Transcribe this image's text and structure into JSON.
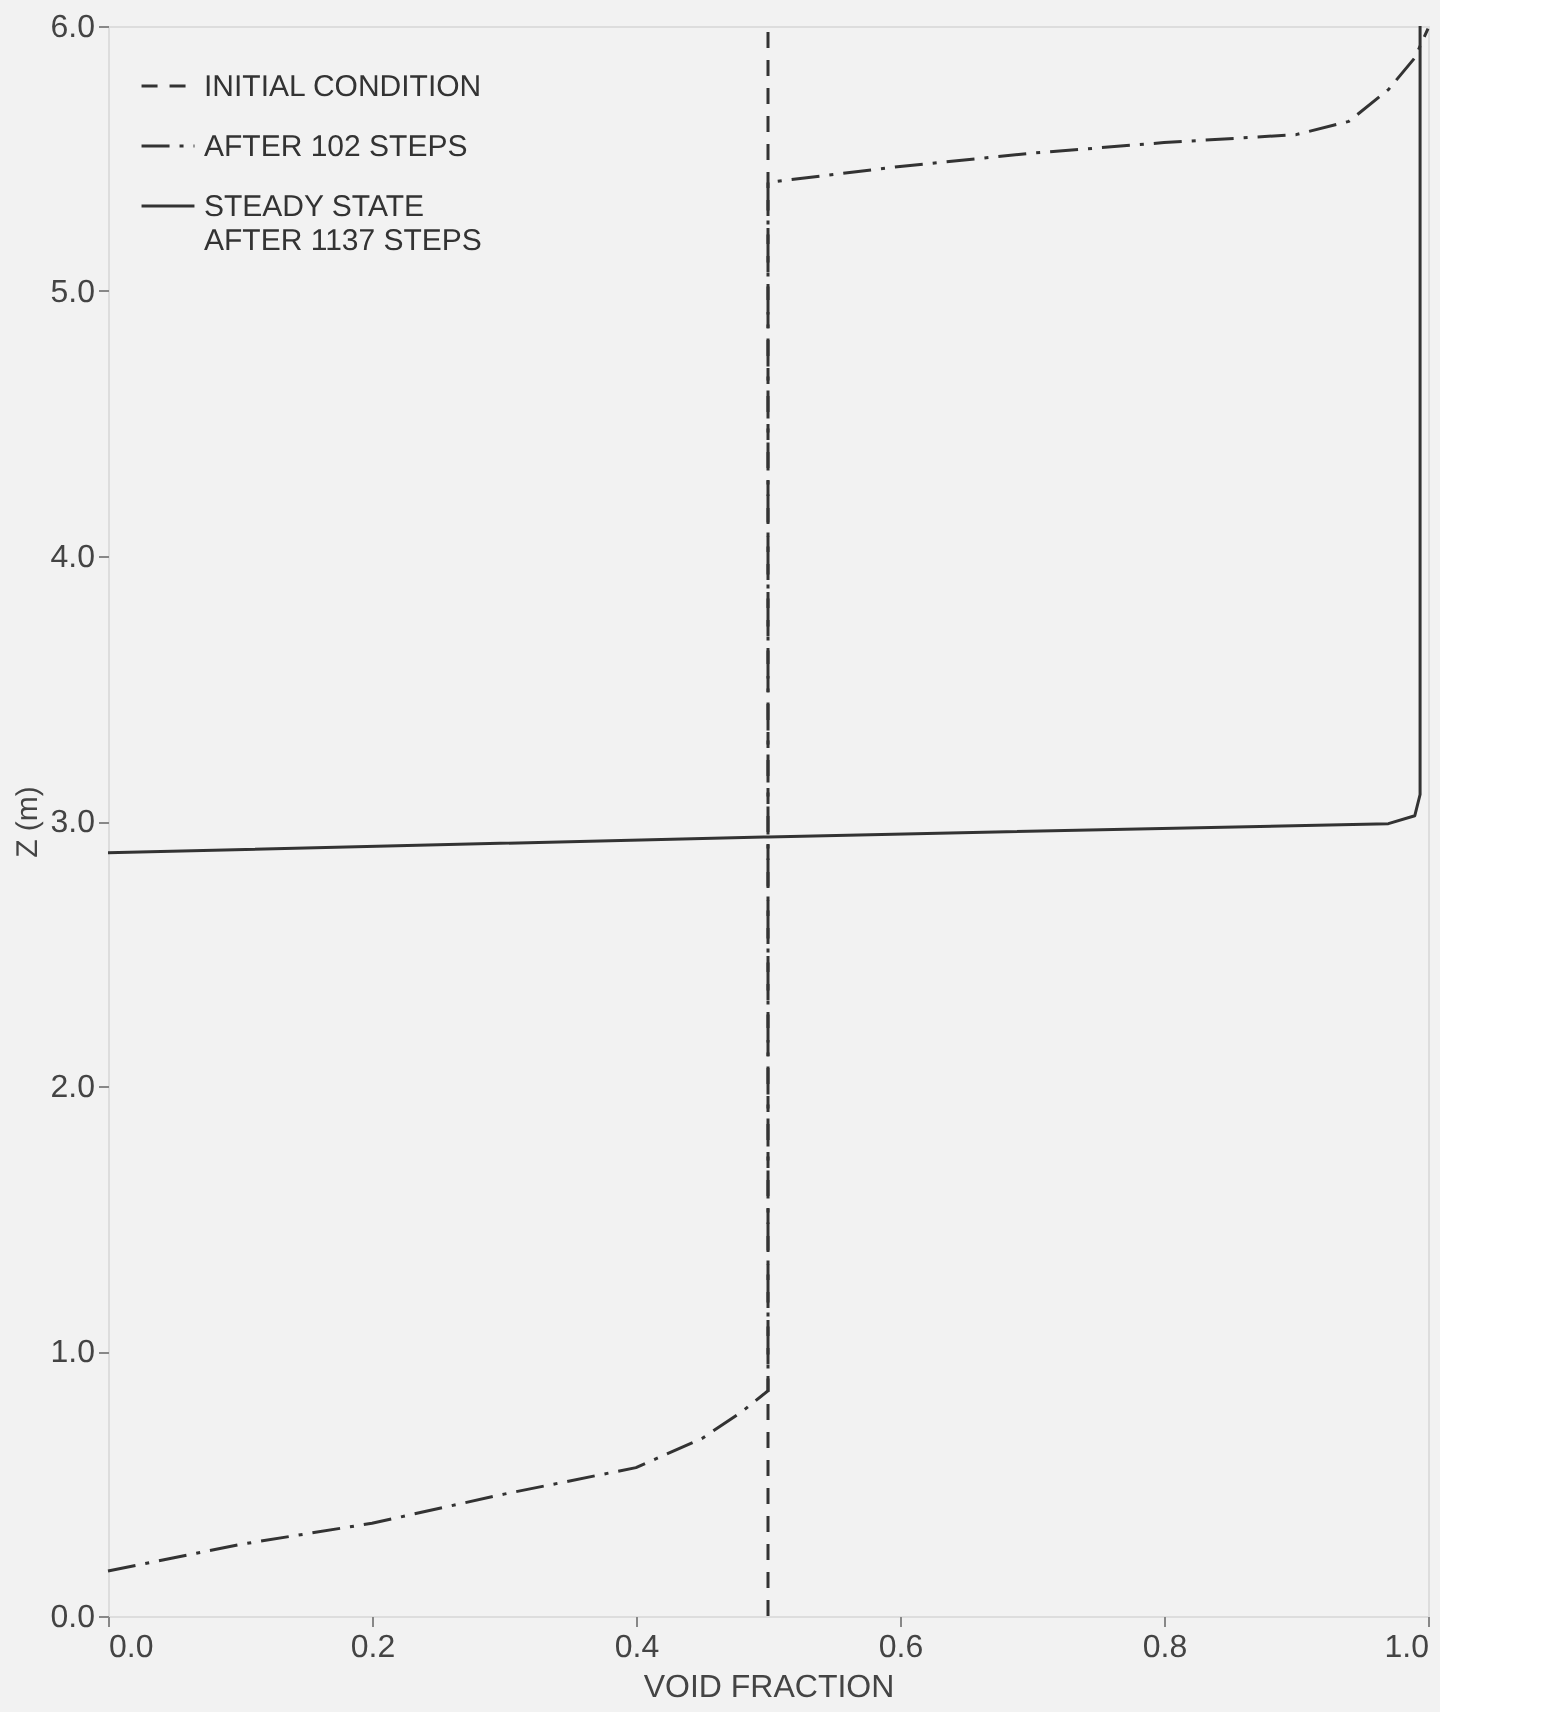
{
  "chart_data": {
    "type": "line",
    "xlabel": "VOID FRACTION",
    "ylabel": "Z (m)",
    "xlim": [
      0,
      1
    ],
    "ylim": [
      0,
      6
    ],
    "xticks": [
      {
        "value": 0,
        "label": "0.0"
      },
      {
        "value": 0.2,
        "label": "0.2"
      },
      {
        "value": 0.4,
        "label": "0.4"
      },
      {
        "value": 0.6,
        "label": "0.6"
      },
      {
        "value": 0.8,
        "label": "0.8"
      },
      {
        "value": 1,
        "label": "1.0"
      }
    ],
    "yticks": [
      {
        "value": 0,
        "label": "0.0"
      },
      {
        "value": 1,
        "label": "1.0"
      },
      {
        "value": 2,
        "label": "2.0"
      },
      {
        "value": 3,
        "label": "3.0"
      },
      {
        "value": 4,
        "label": "4.0"
      },
      {
        "value": 5,
        "label": "5.0"
      },
      {
        "value": 6,
        "label": "6.0"
      }
    ],
    "grid": false,
    "legend": "top left",
    "marker": "none",
    "series": [
      {
        "name": "INITIAL CONDITION",
        "color": "#333333",
        "line_style": "dashed",
        "x": [
          0.5,
          0.5
        ],
        "values": [
          0,
          6
        ]
      },
      {
        "name": "AFTER 102 STEPS",
        "color": "#333333",
        "line_style": "dashdot",
        "x": [
          0,
          0.1,
          0.2,
          0.3,
          0.4,
          0.45,
          0.48,
          0.5,
          0.5,
          0.6,
          0.7,
          0.8,
          0.9,
          0.94,
          0.97,
          0.99,
          1.0
        ],
        "values": [
          0.17,
          0.27,
          0.35,
          0.46,
          0.56,
          0.67,
          0.77,
          0.85,
          5.41,
          5.47,
          5.52,
          5.56,
          5.59,
          5.64,
          5.76,
          5.88,
          5.99
        ]
      },
      {
        "name": "STEADY STATE\nAFTER 1137 STEPS",
        "color": "#333333",
        "line_style": "solid",
        "x": [
          0,
          0.5,
          0.97,
          0.99,
          0.994,
          0.994
        ],
        "values": [
          2.88,
          2.94,
          2.99,
          3.02,
          3.1,
          6.0
        ]
      }
    ]
  }
}
